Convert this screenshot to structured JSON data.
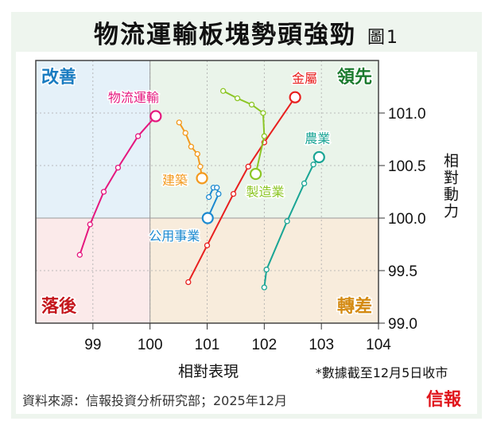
{
  "title": "物流運輸板塊勢頭強勁",
  "figure_label": "圖1",
  "source": "資料來源：信報投資分析研究部；2025年12月",
  "logo": "信報",
  "note": "*數據截至12月5日收市",
  "colors": {
    "q_improving": "#e5f1f9",
    "q_leading": "#eaf4ea",
    "q_lagging": "#fbeaea",
    "q_weakening": "#f8ecdc"
  },
  "chart_data": {
    "type": "scatter",
    "title": "物流運輸板塊勢頭強勁",
    "xlabel": "相對表現",
    "ylabel": "相對動力",
    "xlim": [
      98,
      104
    ],
    "ylim": [
      99,
      101.5
    ],
    "xticks": [
      "99",
      "100",
      "101",
      "102",
      "103",
      "104"
    ],
    "yticks": [
      "99.0",
      "99.5",
      "100.0",
      "100.5",
      "101.0"
    ],
    "grid": true,
    "quadrants": [
      {
        "name": "改善",
        "color": "#1a7cc1",
        "position": "top-left"
      },
      {
        "name": "領先",
        "color": "#1b7a2e",
        "position": "top-right"
      },
      {
        "name": "落後",
        "color": "#c4161c",
        "position": "bottom-left"
      },
      {
        "name": "轉差",
        "color": "#d48a12",
        "position": "bottom-right"
      }
    ],
    "series": [
      {
        "name": "物流運輸",
        "color": "#e5177e",
        "points": [
          [
            98.77,
            99.65
          ],
          [
            98.95,
            99.94
          ],
          [
            99.19,
            100.25
          ],
          [
            99.44,
            100.48
          ],
          [
            99.79,
            100.78
          ],
          [
            100.1,
            100.97
          ]
        ]
      },
      {
        "name": "建築",
        "color": "#f39a1e",
        "points": [
          [
            100.51,
            100.91
          ],
          [
            100.62,
            100.81
          ],
          [
            100.72,
            100.68
          ],
          [
            100.83,
            100.61
          ],
          [
            100.88,
            100.49
          ],
          [
            100.91,
            100.38
          ]
        ]
      },
      {
        "name": "公用事業",
        "color": "#1c8ad0",
        "points": [
          [
            101.03,
            100.2
          ],
          [
            101.11,
            100.29
          ],
          [
            101.17,
            100.29
          ],
          [
            101.2,
            100.23
          ],
          [
            101.01,
            100.0
          ]
        ]
      },
      {
        "name": "金屬",
        "color": "#e8201f",
        "points": [
          [
            100.67,
            99.39
          ],
          [
            101.0,
            99.74
          ],
          [
            101.46,
            100.23
          ],
          [
            101.72,
            100.49
          ],
          [
            102.0,
            100.72
          ],
          [
            102.54,
            101.15
          ]
        ]
      },
      {
        "name": "製造業",
        "color": "#8cc625",
        "points": [
          [
            101.28,
            101.21
          ],
          [
            101.53,
            101.14
          ],
          [
            101.78,
            101.08
          ],
          [
            101.98,
            101.0
          ],
          [
            102.0,
            100.78
          ],
          [
            101.85,
            100.42
          ]
        ]
      },
      {
        "name": "農業",
        "color": "#1aa595",
        "points": [
          [
            102.0,
            99.34
          ],
          [
            102.04,
            99.51
          ],
          [
            102.4,
            99.97
          ],
          [
            102.7,
            100.33
          ],
          [
            102.86,
            100.51
          ],
          [
            102.96,
            100.58
          ]
        ]
      }
    ]
  }
}
